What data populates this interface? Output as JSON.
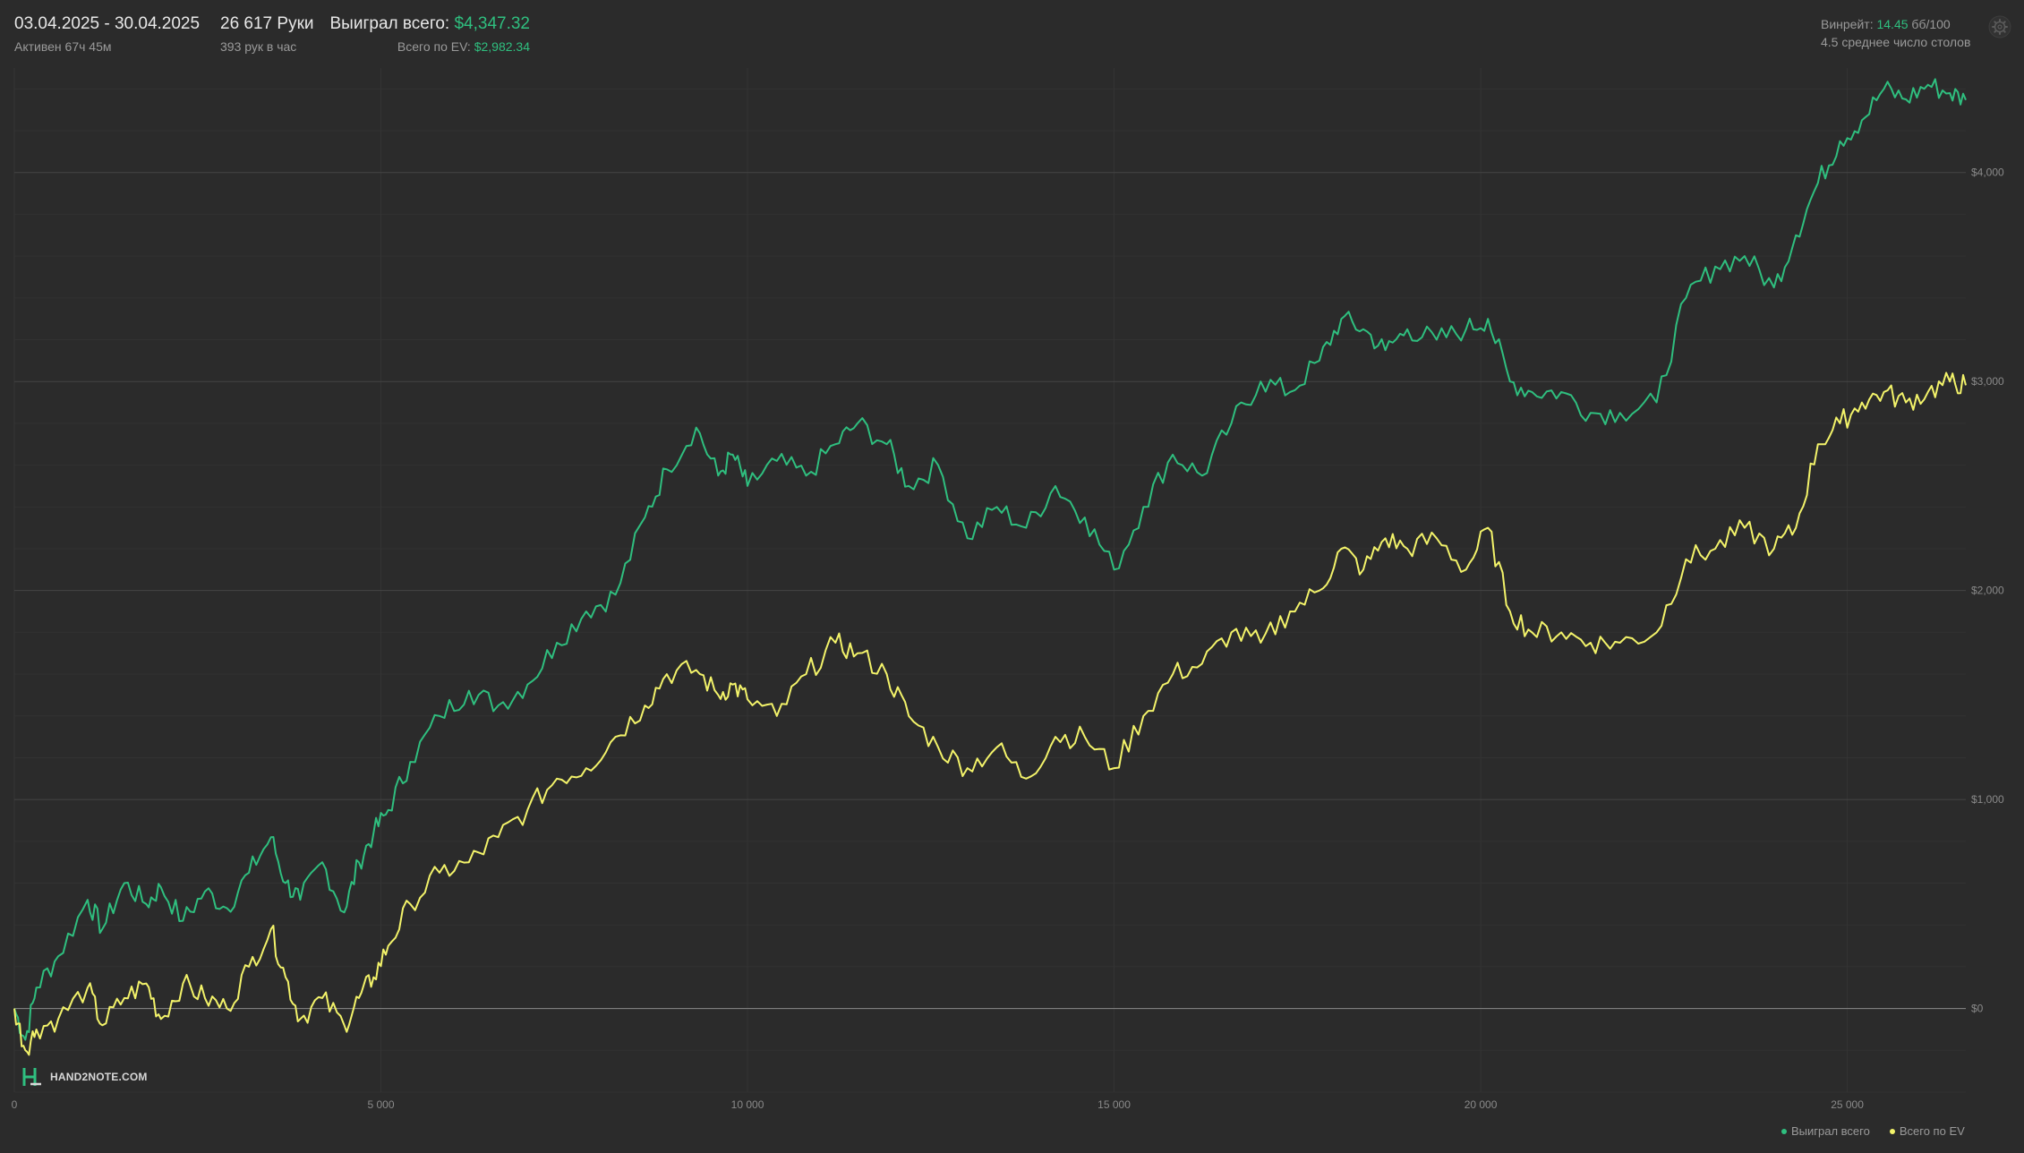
{
  "header": {
    "date_range": "03.04.2025 - 30.04.2025",
    "active_time": "Активен 67ч 45м",
    "hands": "26 617 Руки",
    "hands_per_hour": "393 рук в час",
    "won_label": "Выиграл всего: ",
    "won_value": "$4,347.32",
    "ev_label": "Всего по EV: ",
    "ev_value": "$2,982.34",
    "winrate_label": "Винрейт: ",
    "winrate_value": "14.45",
    "winrate_unit": " бб/100",
    "avg_tables": "4.5 среднее число столов",
    "settings_icon": "gear-icon"
  },
  "logo": {
    "brand": "HAND2NOTE.COM",
    "icon": "h2n-logo-icon"
  },
  "colors": {
    "won": "#2fbf7f",
    "ev": "#f3f36a",
    "grid": "#3a3a3a",
    "background": "#2b2b2b"
  },
  "chart_data": {
    "type": "line",
    "xlim": [
      0,
      26617
    ],
    "ylim": [
      -400,
      4500
    ],
    "x_ticks": [
      0,
      5000,
      10000,
      15000,
      20000,
      25000
    ],
    "x_tick_labels": [
      "0",
      "5 000",
      "10 000",
      "15 000",
      "20 000",
      "25 000"
    ],
    "y_ticks": [
      0,
      1000,
      2000,
      3000,
      4000
    ],
    "y_tick_labels": [
      "$0",
      "$1,000",
      "$2,000",
      "$3,000",
      "$4,000"
    ],
    "grid": true,
    "legend": "bottom-right",
    "series": [
      {
        "name": "Выиграл всего",
        "color": "#2fbf7f",
        "x": [
          0,
          150,
          300,
          600,
          1000,
          1200,
          1500,
          1800,
          2000,
          2300,
          2600,
          2900,
          3200,
          3500,
          3700,
          3900,
          4200,
          4500,
          4700,
          4900,
          5100,
          5400,
          5800,
          6200,
          6600,
          7000,
          7400,
          7800,
          8200,
          8600,
          8900,
          9300,
          9600,
          9800,
          10000,
          10400,
          10800,
          11200,
          11500,
          11900,
          12200,
          12600,
          13000,
          13400,
          13800,
          14200,
          14600,
          15000,
          15400,
          15800,
          16200,
          16600,
          17000,
          17400,
          17800,
          18100,
          18400,
          18700,
          19000,
          19400,
          19800,
          20100,
          20400,
          20700,
          21100,
          21500,
          21900,
          22400,
          22800,
          23200,
          23600,
          24000,
          24300,
          24600,
          24900,
          25200,
          25500,
          25800,
          26100,
          26400,
          26617
        ],
        "y": [
          0,
          -150,
          100,
          250,
          520,
          380,
          600,
          500,
          580,
          420,
          560,
          480,
          650,
          820,
          600,
          520,
          700,
          460,
          700,
          840,
          950,
          1180,
          1400,
          1520,
          1450,
          1550,
          1750,
          1900,
          1980,
          2350,
          2580,
          2780,
          2550,
          2650,
          2500,
          2620,
          2550,
          2700,
          2800,
          2700,
          2500,
          2600,
          2250,
          2400,
          2300,
          2500,
          2350,
          2100,
          2400,
          2650,
          2550,
          2800,
          3000,
          2950,
          3100,
          3300,
          3250,
          3150,
          3250,
          3200,
          3250,
          3300,
          3000,
          2950,
          2950,
          2850,
          2850,
          2900,
          3400,
          3550,
          3600,
          3450,
          3700,
          3950,
          4150,
          4250,
          4400,
          4350,
          4420,
          4380,
          4347
        ]
      },
      {
        "name": "Всего по EV",
        "color": "#f3f36a",
        "x": [
          0,
          150,
          300,
          600,
          1000,
          1200,
          1500,
          1800,
          2000,
          2300,
          2600,
          2900,
          3200,
          3500,
          3700,
          3900,
          4200,
          4500,
          4700,
          4900,
          5100,
          5400,
          5800,
          6200,
          6600,
          7000,
          7400,
          7800,
          8200,
          8600,
          8900,
          9300,
          9600,
          9800,
          10000,
          10400,
          10800,
          11200,
          11500,
          11900,
          12200,
          12600,
          13000,
          13400,
          13800,
          14200,
          14600,
          15000,
          15400,
          15800,
          16200,
          16600,
          17000,
          17400,
          17800,
          18100,
          18400,
          18700,
          19000,
          19400,
          19800,
          20100,
          20400,
          20700,
          21100,
          21500,
          21900,
          22400,
          22800,
          23200,
          23600,
          24000,
          24300,
          24600,
          24900,
          25200,
          25500,
          25800,
          26100,
          26400,
          26617
        ],
        "y": [
          0,
          -200,
          -100,
          -50,
          100,
          -80,
          50,
          120,
          -50,
          120,
          50,
          0,
          200,
          380,
          150,
          -50,
          50,
          -80,
          50,
          150,
          300,
          500,
          650,
          700,
          820,
          950,
          1100,
          1150,
          1300,
          1450,
          1600,
          1620,
          1500,
          1550,
          1480,
          1400,
          1600,
          1750,
          1700,
          1600,
          1400,
          1250,
          1150,
          1250,
          1100,
          1300,
          1300,
          1150,
          1400,
          1600,
          1650,
          1800,
          1750,
          1900,
          2000,
          2200,
          2100,
          2250,
          2200,
          2250,
          2100,
          2300,
          1900,
          1800,
          1800,
          1750,
          1750,
          1800,
          2150,
          2200,
          2300,
          2200,
          2300,
          2700,
          2800,
          2900,
          2950,
          2900,
          2950,
          3000,
          2982
        ]
      }
    ]
  }
}
